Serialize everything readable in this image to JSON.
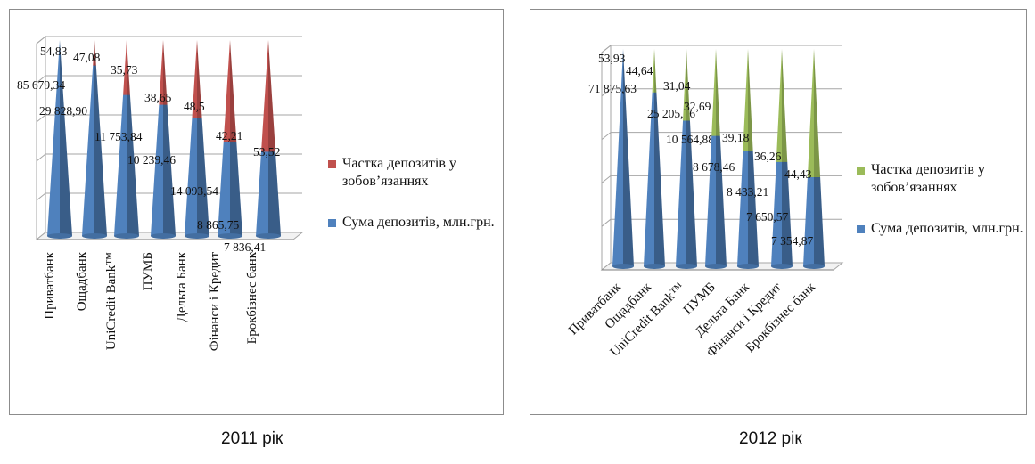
{
  "chart_data": [
    {
      "type": "bar",
      "subtype": "stacked-3d-cone",
      "caption": "2011 рік",
      "categories": [
        "Приватбанк",
        "Ощадбанк",
        "UniCredit Bank™",
        "ПУМБ",
        "Дельта Банк",
        "Фінанси і Кредит",
        "Брокбізнес банк"
      ],
      "series": [
        {
          "name": "Частка депозитів у зобов’язаннях",
          "color": "#c0504d",
          "values": [
            54.83,
            47.08,
            35.73,
            38.65,
            48.5,
            42.21,
            53.52
          ],
          "labels": [
            "54,83",
            "47,08",
            "35,73",
            "38,65",
            "48,5",
            "42,21",
            "53,52"
          ]
        },
        {
          "name": "Сума депозитів, млн.грн.",
          "color": "#4f81bd",
          "values": [
            85679.34,
            29828.9,
            11753.84,
            10239.46,
            14093.54,
            8865.75,
            7836.41
          ],
          "labels": [
            "85 679,34",
            "29 828,90",
            "11 753,84",
            "10 239,46",
            "14 093,54",
            "8 865,75",
            "7 836,41"
          ]
        }
      ],
      "blue_share": [
        1.0,
        0.87,
        0.72,
        0.67,
        0.6,
        0.48,
        0.43
      ],
      "legend": "right"
    },
    {
      "type": "bar",
      "subtype": "stacked-3d-cone",
      "caption": "2012 рік",
      "categories": [
        "Приватбанк",
        "Ощадбанк",
        "UniCredit Bank™",
        "ПУМБ",
        "Дельта Банк",
        "Фінанси і Кредит",
        "Брокбізнес банк"
      ],
      "series": [
        {
          "name": "Частка депозитів у зобов’язаннях",
          "color": "#9bbb59",
          "values": [
            53.93,
            44.64,
            31.04,
            32.69,
            39.18,
            36.26,
            44.43
          ],
          "labels": [
            "53,93",
            "44,64",
            "31,04",
            "32,69",
            "39,18",
            "36,26",
            "44,43"
          ]
        },
        {
          "name": "Сума депозитів, млн.грн.",
          "color": "#4f81bd",
          "values": [
            71875.63,
            25205.26,
            10564.88,
            8678.46,
            8433.21,
            7650.57,
            7354.87
          ],
          "labels": [
            "71 875,63",
            "25 205,26",
            "10 564,88",
            "8 678,46",
            "8 433,21",
            "7 650,57",
            "7 354,87"
          ]
        }
      ],
      "blue_share": [
        1.0,
        0.8,
        0.67,
        0.6,
        0.53,
        0.48,
        0.41
      ],
      "legend": "right"
    }
  ]
}
